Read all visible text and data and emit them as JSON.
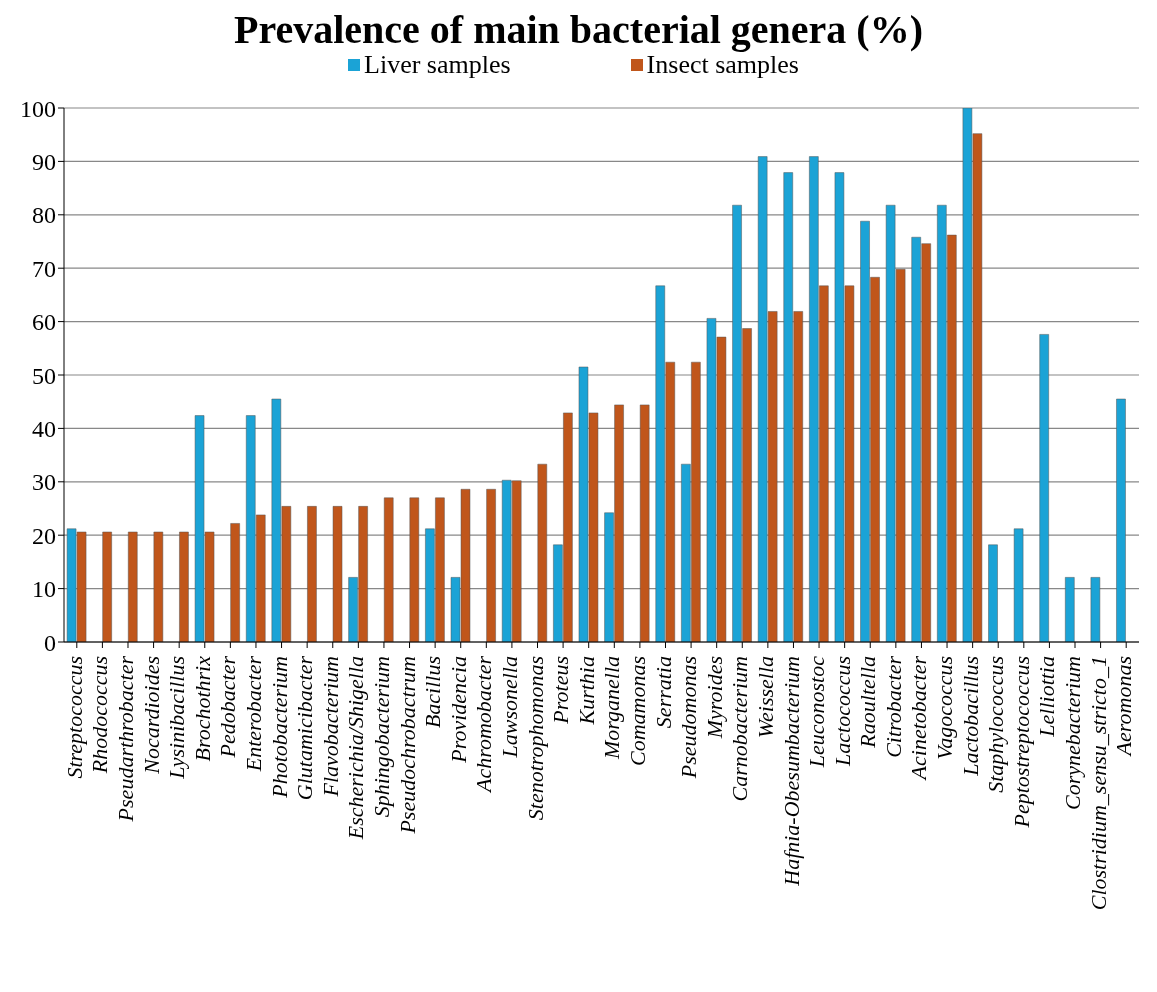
{
  "chart_data": {
    "type": "bar",
    "title": "Prevalence of main bacterial genera (%)",
    "categories": [
      "Streptococcus",
      "Rhodococcus",
      "Pseudarthrobacter",
      "Nocardioides",
      "Lysinibacillus",
      "Brochothrix",
      "Pedobacter",
      "Enterobacter",
      "Photobacterium",
      "Glutamicibacter",
      "Flavobacterium",
      "Escherichia/Shigella",
      "Sphingobacterium",
      "Pseudochrobactrum",
      "Bacillus",
      "Providencia",
      "Achromobacter",
      "Lawsonella",
      "Stenotrophomonas",
      "Proteus",
      "Kurthia",
      "Morganella",
      "Comamonas",
      "Serratia",
      "Pseudomonas",
      "Myroides",
      "Carnobacterium",
      "Weissella",
      "Hafnia-Obesumbacterium",
      "Leuconostoc",
      "Lactococcus",
      "Raoultella",
      "Citrobacter",
      "Acinetobacter",
      "Vagococcus",
      "Lactobacillus",
      "Staphylococcus",
      "Peptostreptococcus",
      "Lelliottia",
      "Corynebacterium",
      "Clostridium_sensu_stricto_1",
      "Aeromonas"
    ],
    "series": [
      {
        "name": "Liver samples",
        "color": "#1ba3d6",
        "values": [
          21.2,
          null,
          null,
          null,
          null,
          42.4,
          null,
          42.4,
          45.5,
          null,
          null,
          12.1,
          null,
          null,
          21.2,
          12.1,
          null,
          30.3,
          null,
          18.2,
          51.5,
          24.2,
          null,
          66.7,
          33.3,
          60.6,
          81.8,
          90.9,
          87.9,
          90.9,
          87.9,
          78.8,
          81.8,
          75.8,
          81.8,
          100,
          18.2,
          21.2,
          57.6,
          12.1,
          12.1,
          45.5
        ]
      },
      {
        "name": "Insect samples",
        "color": "#c0561b",
        "values": [
          20.6,
          20.6,
          20.6,
          20.6,
          20.6,
          20.6,
          22.2,
          23.8,
          25.4,
          25.4,
          25.4,
          25.4,
          27.0,
          27.0,
          27.0,
          28.6,
          28.6,
          30.2,
          33.3,
          42.9,
          42.9,
          44.4,
          44.4,
          52.4,
          52.4,
          57.1,
          58.7,
          61.9,
          61.9,
          66.7,
          66.7,
          68.3,
          69.8,
          74.6,
          76.2,
          95.2,
          null,
          null,
          null,
          null,
          null,
          null
        ]
      }
    ],
    "ylim": [
      0,
      100
    ],
    "yticks": [
      0,
      10,
      20,
      30,
      40,
      50,
      60,
      70,
      80,
      90,
      100
    ],
    "grid": "y",
    "legend": "top"
  }
}
